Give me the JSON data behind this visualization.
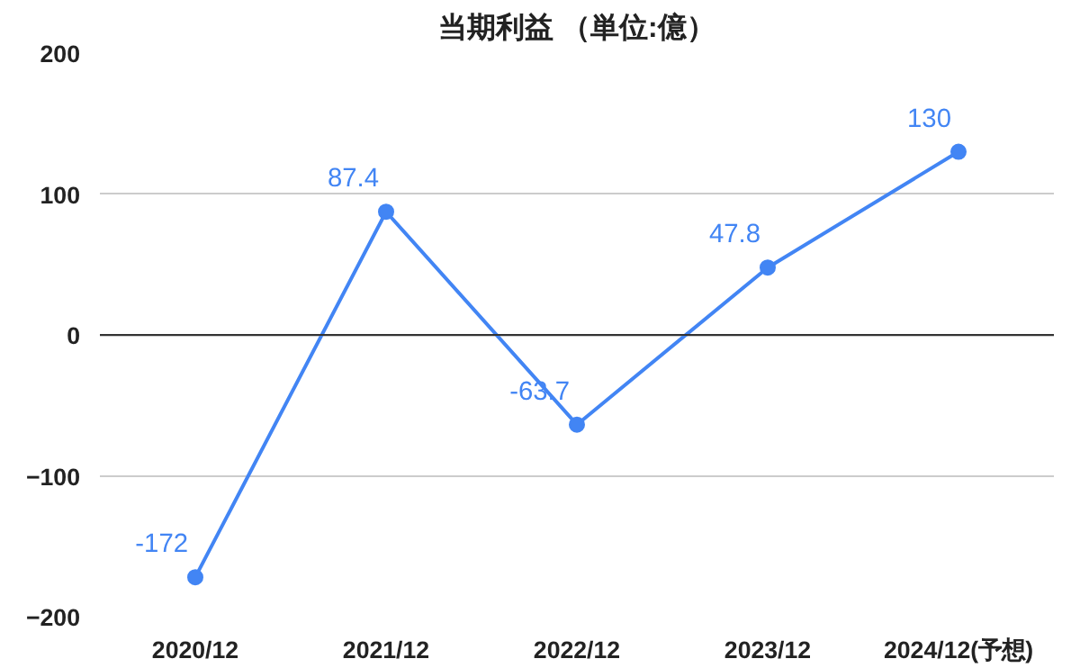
{
  "chart_data": {
    "type": "line",
    "title": "当期利益 （単位:億）",
    "categories": [
      "2020/12",
      "2021/12",
      "2022/12",
      "2023/12",
      "2024/12(予想)"
    ],
    "series": [
      {
        "color": "#4285f4",
        "values": [
          -172,
          87.4,
          -63.7,
          47.8,
          130
        ]
      }
    ],
    "ylim": [
      -200,
      200
    ],
    "yticks": [
      -200,
      -100,
      0,
      100,
      200
    ],
    "ref_lines": [
      {
        "axis": "y",
        "value": 0,
        "color": "#333333"
      }
    ],
    "grid": "y",
    "marker": "circle",
    "line_style": "solid",
    "data_labels": true
  }
}
